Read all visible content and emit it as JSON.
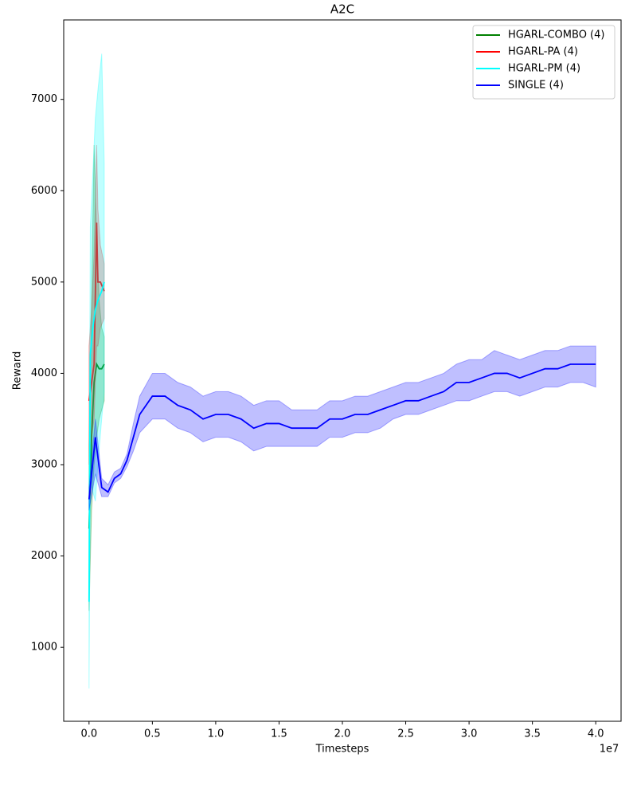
{
  "chart_data": {
    "type": "line",
    "title": "A2C",
    "x_label": "Timesteps",
    "y_label": "Reward",
    "x_offset_label": "1e7",
    "xlim": [
      -2000000,
      42000000
    ],
    "ylim": [
      190,
      7870
    ],
    "xticks": [
      {
        "value": 0,
        "label": "0.0"
      },
      {
        "value": 5000000,
        "label": "0.5"
      },
      {
        "value": 10000000,
        "label": "1.0"
      },
      {
        "value": 15000000,
        "label": "1.5"
      },
      {
        "value": 20000000,
        "label": "2.0"
      },
      {
        "value": 25000000,
        "label": "2.5"
      },
      {
        "value": 30000000,
        "label": "3.0"
      },
      {
        "value": 35000000,
        "label": "3.5"
      },
      {
        "value": 40000000,
        "label": "4.0"
      }
    ],
    "yticks": [
      1000,
      2000,
      3000,
      4000,
      5000,
      6000,
      7000
    ],
    "legend": "upper right",
    "series": [
      {
        "name": "HGARL-COMBO (4)",
        "color": "#008000",
        "x": [
          0,
          200000,
          400000,
          600000,
          800000,
          1000000,
          1200000
        ],
        "values": [
          2300,
          3300,
          3900,
          4100,
          4050,
          4050,
          4100
        ],
        "lower": [
          1400,
          2500,
          3000,
          3300,
          3500,
          3600,
          3700
        ],
        "upper": [
          3200,
          4800,
          6500,
          5500,
          4800,
          4500,
          4400
        ]
      },
      {
        "name": "HGARL-PA (4)",
        "color": "#ff0000",
        "x": [
          0,
          200000,
          400000,
          600000,
          700000,
          900000,
          1200000
        ],
        "values": [
          3700,
          3900,
          4100,
          5650,
          5000,
          5000,
          4900
        ],
        "lower": [
          3000,
          3300,
          3500,
          4300,
          4300,
          4500,
          4600
        ],
        "upper": [
          4300,
          4700,
          5300,
          6500,
          5800,
          5400,
          5200
        ]
      },
      {
        "name": "HGARL-PM (4)",
        "color": "#00ffff",
        "x": [
          0,
          100000,
          300000,
          500000,
          700000,
          1000000,
          1200000
        ],
        "values": [
          1500,
          4200,
          4500,
          4700,
          4800,
          4900,
          5000
        ],
        "lower": [
          550,
          2800,
          2700,
          2600,
          3000,
          3500,
          3800
        ],
        "upper": [
          2500,
          5600,
          6200,
          6800,
          7100,
          7500,
          6300
        ]
      },
      {
        "name": "SINGLE (4)",
        "color": "#0000ff",
        "x": [
          0,
          500000,
          1000000,
          1500000,
          2000000,
          2500000,
          3000000,
          3500000,
          4000000,
          5000000,
          6000000,
          7000000,
          8000000,
          9000000,
          10000000,
          11000000,
          12000000,
          13000000,
          14000000,
          15000000,
          16000000,
          17000000,
          18000000,
          19000000,
          20000000,
          21000000,
          22000000,
          23000000,
          24000000,
          25000000,
          26000000,
          27000000,
          28000000,
          29000000,
          30000000,
          31000000,
          32000000,
          33000000,
          34000000,
          35000000,
          36000000,
          37000000,
          38000000,
          39000000,
          40000000
        ],
        "values": [
          2620,
          3300,
          2750,
          2700,
          2850,
          2900,
          3050,
          3300,
          3550,
          3750,
          3750,
          3650,
          3600,
          3500,
          3550,
          3550,
          3500,
          3400,
          3450,
          3450,
          3400,
          3400,
          3400,
          3500,
          3500,
          3550,
          3550,
          3600,
          3650,
          3700,
          3700,
          3750,
          3800,
          3900,
          3900,
          3950,
          4000,
          4000,
          3950,
          4000,
          4050,
          4050,
          4100,
          4100,
          4100
        ],
        "lower": [
          2500,
          2900,
          2650,
          2650,
          2800,
          2850,
          2980,
          3150,
          3350,
          3500,
          3500,
          3400,
          3350,
          3250,
          3300,
          3300,
          3250,
          3150,
          3200,
          3200,
          3200,
          3200,
          3200,
          3300,
          3300,
          3350,
          3350,
          3400,
          3500,
          3550,
          3550,
          3600,
          3650,
          3700,
          3700,
          3750,
          3800,
          3800,
          3750,
          3800,
          3850,
          3850,
          3900,
          3900,
          3850
        ],
        "upper": [
          2750,
          3500,
          2850,
          2780,
          2920,
          2960,
          3120,
          3450,
          3750,
          4000,
          4000,
          3900,
          3850,
          3750,
          3800,
          3800,
          3750,
          3650,
          3700,
          3700,
          3600,
          3600,
          3600,
          3700,
          3700,
          3750,
          3750,
          3800,
          3850,
          3900,
          3900,
          3950,
          4000,
          4100,
          4150,
          4150,
          4250,
          4200,
          4150,
          4200,
          4250,
          4250,
          4300,
          4300,
          4300
        ]
      }
    ]
  }
}
